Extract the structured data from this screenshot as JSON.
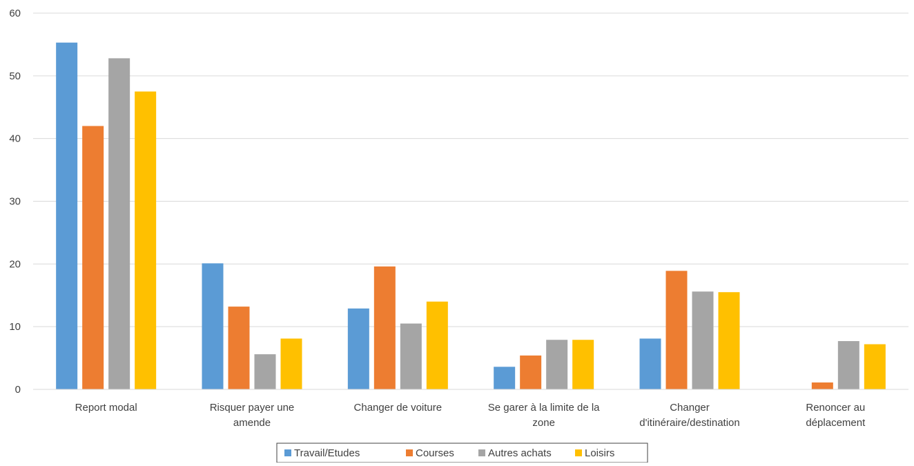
{
  "chart_data": {
    "type": "bar",
    "categories": [
      "Report modal",
      "Risquer payer une amende",
      "Changer de voiture",
      "Se garer à la limite de la zone",
      "Changer d'itinéraire/destination",
      "Renoncer au déplacement"
    ],
    "category_lines": [
      [
        "Report modal"
      ],
      [
        "Risquer payer une",
        "amende"
      ],
      [
        "Changer de voiture"
      ],
      [
        "Se garer à la limite de la",
        "zone"
      ],
      [
        "Changer",
        "d'itinéraire/destination"
      ],
      [
        "Renoncer au",
        "déplacement"
      ]
    ],
    "series": [
      {
        "name": "Travail/Etudes",
        "color": "#5B9BD5",
        "values": [
          55.3,
          20.1,
          12.9,
          3.6,
          8.1,
          0
        ]
      },
      {
        "name": "Courses",
        "color": "#ED7D31",
        "values": [
          42.0,
          13.2,
          19.6,
          5.4,
          18.9,
          1.1
        ]
      },
      {
        "name": "Autres achats",
        "color": "#A5A5A5",
        "values": [
          52.8,
          5.6,
          10.5,
          7.9,
          15.6,
          7.7
        ]
      },
      {
        "name": "Loisirs",
        "color": "#FFC000",
        "values": [
          47.5,
          8.1,
          14.0,
          7.9,
          15.5,
          7.2
        ]
      }
    ],
    "ylim": [
      0,
      60
    ],
    "yticks": [
      "0",
      "10",
      "20",
      "30",
      "40",
      "50",
      "60"
    ],
    "grid": true,
    "legend_position": "bottom",
    "title": "",
    "xlabel": "",
    "ylabel": ""
  }
}
